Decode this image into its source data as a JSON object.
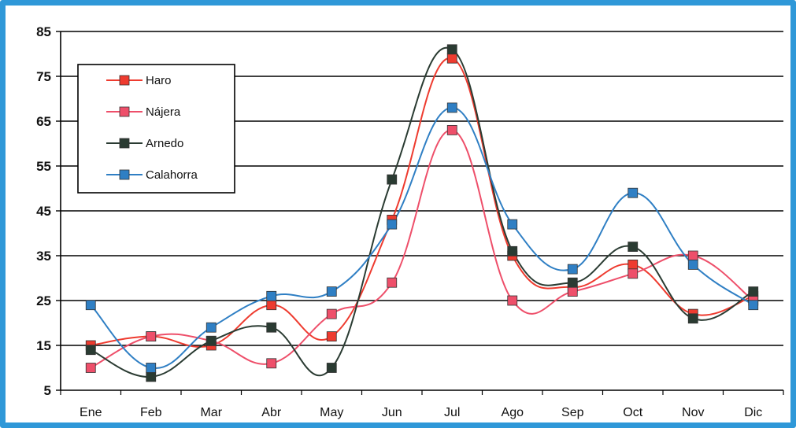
{
  "chart_data": {
    "type": "line",
    "title": "",
    "xlabel": "",
    "ylabel": "",
    "categories": [
      "Ene",
      "Feb",
      "Mar",
      "Abr",
      "May",
      "Jun",
      "Jul",
      "Ago",
      "Sep",
      "Oct",
      "Nov",
      "Dic"
    ],
    "ylim": [
      5,
      85
    ],
    "yticks": [
      5,
      15,
      25,
      35,
      45,
      55,
      65,
      75,
      85
    ],
    "grid": "horizontal",
    "legend_position": "top-left",
    "smooth": true,
    "series": [
      {
        "name": "Haro",
        "color": "#ee3b2f",
        "values": [
          15,
          17,
          15,
          24,
          17,
          43,
          79,
          35,
          28,
          33,
          22,
          26
        ]
      },
      {
        "name": "Nájera",
        "color": "#ee4f6a",
        "values": [
          10,
          17,
          16,
          11,
          22,
          29,
          63,
          25,
          27,
          31,
          35,
          25
        ]
      },
      {
        "name": "Arnedo",
        "color": "#2a3b32",
        "values": [
          14,
          8,
          16,
          19,
          10,
          52,
          81,
          36,
          29,
          37,
          21,
          27
        ]
      },
      {
        "name": "Calahorra",
        "color": "#2f7fc4",
        "values": [
          24,
          10,
          19,
          26,
          27,
          42,
          68,
          42,
          32,
          49,
          33,
          24
        ]
      }
    ]
  }
}
